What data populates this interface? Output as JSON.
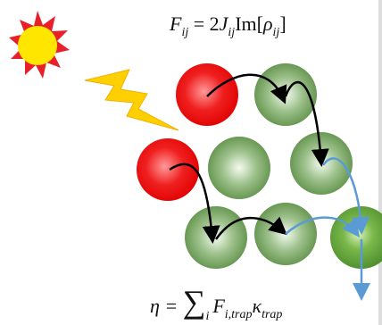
{
  "top_equation": [
    "F",
    "ij",
    " = 2",
    "J",
    "ij",
    "Im[",
    "ρ",
    "ij",
    "]"
  ],
  "bottom_equation": [
    "η = ",
    "∑",
    "i",
    "F",
    "i,trap",
    "κ",
    "trap"
  ]
}
